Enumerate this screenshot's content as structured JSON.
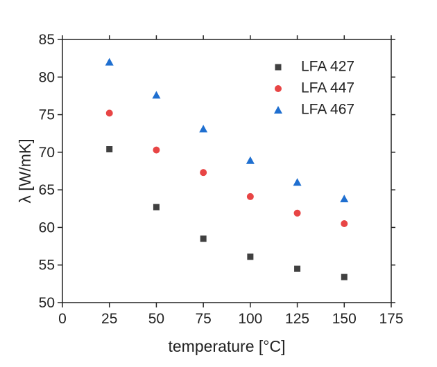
{
  "chart_data": {
    "type": "scatter",
    "xlabel": "temperature [°C]",
    "ylabel": "λ [W/mK]",
    "xlim": [
      0,
      175
    ],
    "xticks": [
      0,
      25,
      50,
      75,
      100,
      125,
      150,
      175
    ],
    "ylim": [
      50,
      85
    ],
    "yticks": [
      50,
      55,
      60,
      65,
      70,
      75,
      80,
      85
    ],
    "legend": "upper right",
    "series": [
      {
        "name": "LFA 427",
        "color": "#404040",
        "marker": "square",
        "x": [
          25,
          50,
          75,
          100,
          125,
          150
        ],
        "values": [
          70.4,
          62.7,
          58.5,
          56.1,
          54.5,
          53.4
        ]
      },
      {
        "name": "LFA 447",
        "color": "#e84545",
        "marker": "circle",
        "x": [
          25,
          50,
          75,
          100,
          125,
          150
        ],
        "values": [
          75.2,
          70.3,
          67.3,
          64.1,
          61.9,
          60.5
        ]
      },
      {
        "name": "LFA 467",
        "color": "#1f6fd0",
        "marker": "triangle",
        "x": [
          25,
          50,
          75,
          100,
          125,
          150
        ],
        "values": [
          82.0,
          77.6,
          73.1,
          68.9,
          66.0,
          63.8
        ]
      }
    ]
  }
}
